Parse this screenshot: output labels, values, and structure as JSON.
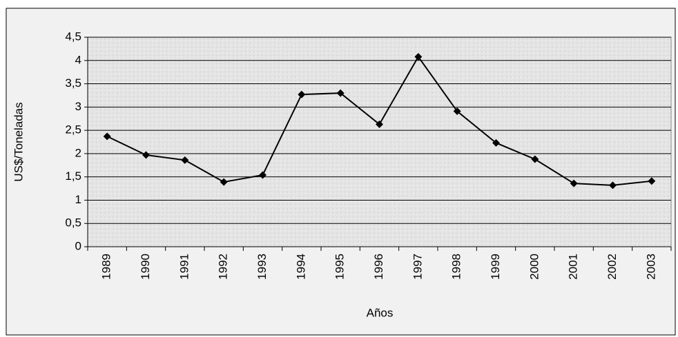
{
  "chart_data": {
    "type": "line",
    "x_label": "Años",
    "y_label": "US$/Toneladas",
    "categories": [
      "1989",
      "1990",
      "1991",
      "1992",
      "1993",
      "1994",
      "1995",
      "1996",
      "1997",
      "1998",
      "1999",
      "2000",
      "2001",
      "2002",
      "2003"
    ],
    "values": [
      2.37,
      1.97,
      1.86,
      1.39,
      1.54,
      3.27,
      3.3,
      2.63,
      4.08,
      2.91,
      2.23,
      1.88,
      1.36,
      1.32,
      1.41
    ],
    "color": "#000000",
    "ylim": [
      0,
      4.5
    ],
    "yticks": [
      0,
      {
        "value": 0.5,
        "label": "0,5"
      },
      1,
      {
        "value": 1.5,
        "label": "1,5"
      },
      2,
      {
        "value": 2.5,
        "label": "2,5"
      },
      3,
      {
        "value": 3.5,
        "label": "3,5"
      },
      4,
      {
        "value": 4.5,
        "label": "4,5"
      }
    ],
    "grid": true
  }
}
